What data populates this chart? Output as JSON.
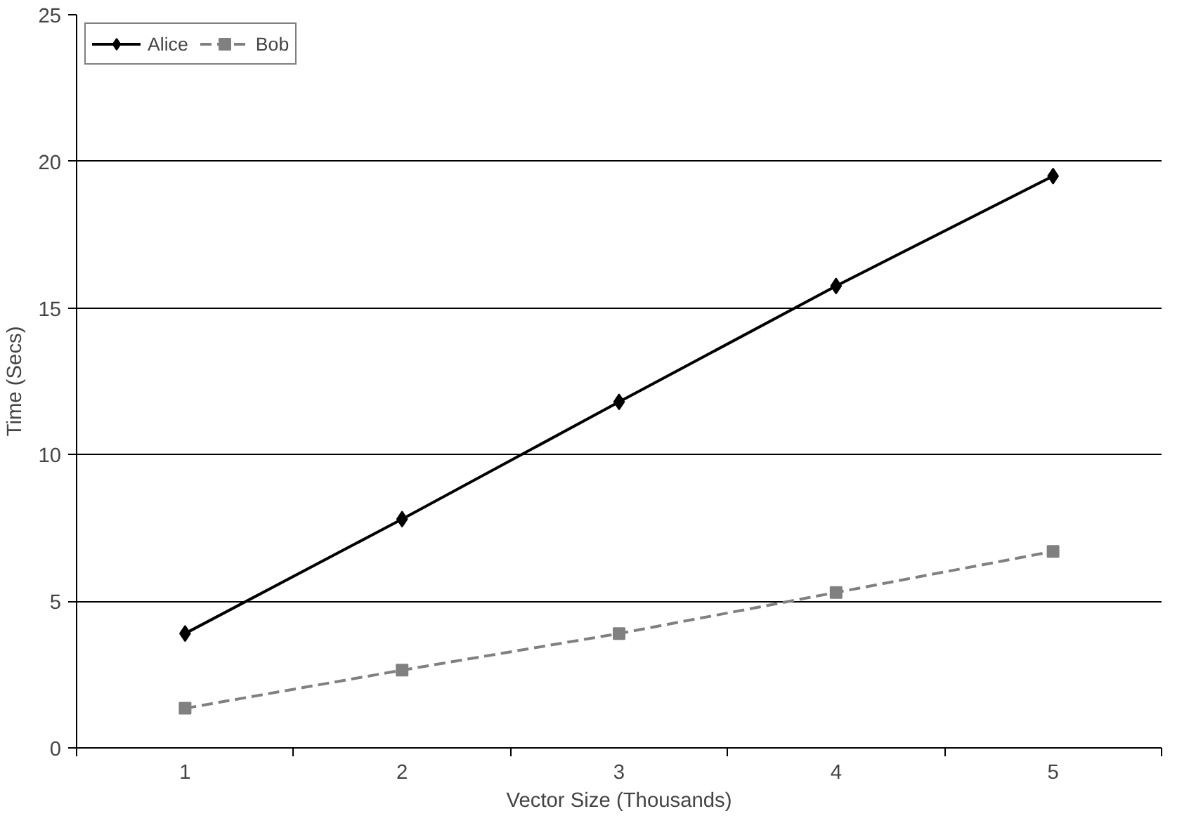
{
  "chart_data": {
    "type": "line",
    "xlabel": "Vector Size (Thousands)",
    "ylabel": "Time (Secs)",
    "categories": [
      "1",
      "2",
      "3",
      "4",
      "5"
    ],
    "series": [
      {
        "name": "Alice",
        "color": "#000000",
        "values": [
          3.9,
          7.8,
          11.8,
          15.75,
          19.5
        ],
        "marker": "diamond",
        "line_style": "solid"
      },
      {
        "name": "Bob",
        "color": "#808080",
        "values": [
          1.35,
          2.65,
          3.9,
          5.3,
          6.7
        ],
        "marker": "square",
        "line_style": "dashed"
      }
    ],
    "ylim": [
      0,
      25
    ],
    "yticks": [
      0,
      5,
      10,
      15,
      20,
      25
    ],
    "grid": "y",
    "legend": "top left"
  }
}
